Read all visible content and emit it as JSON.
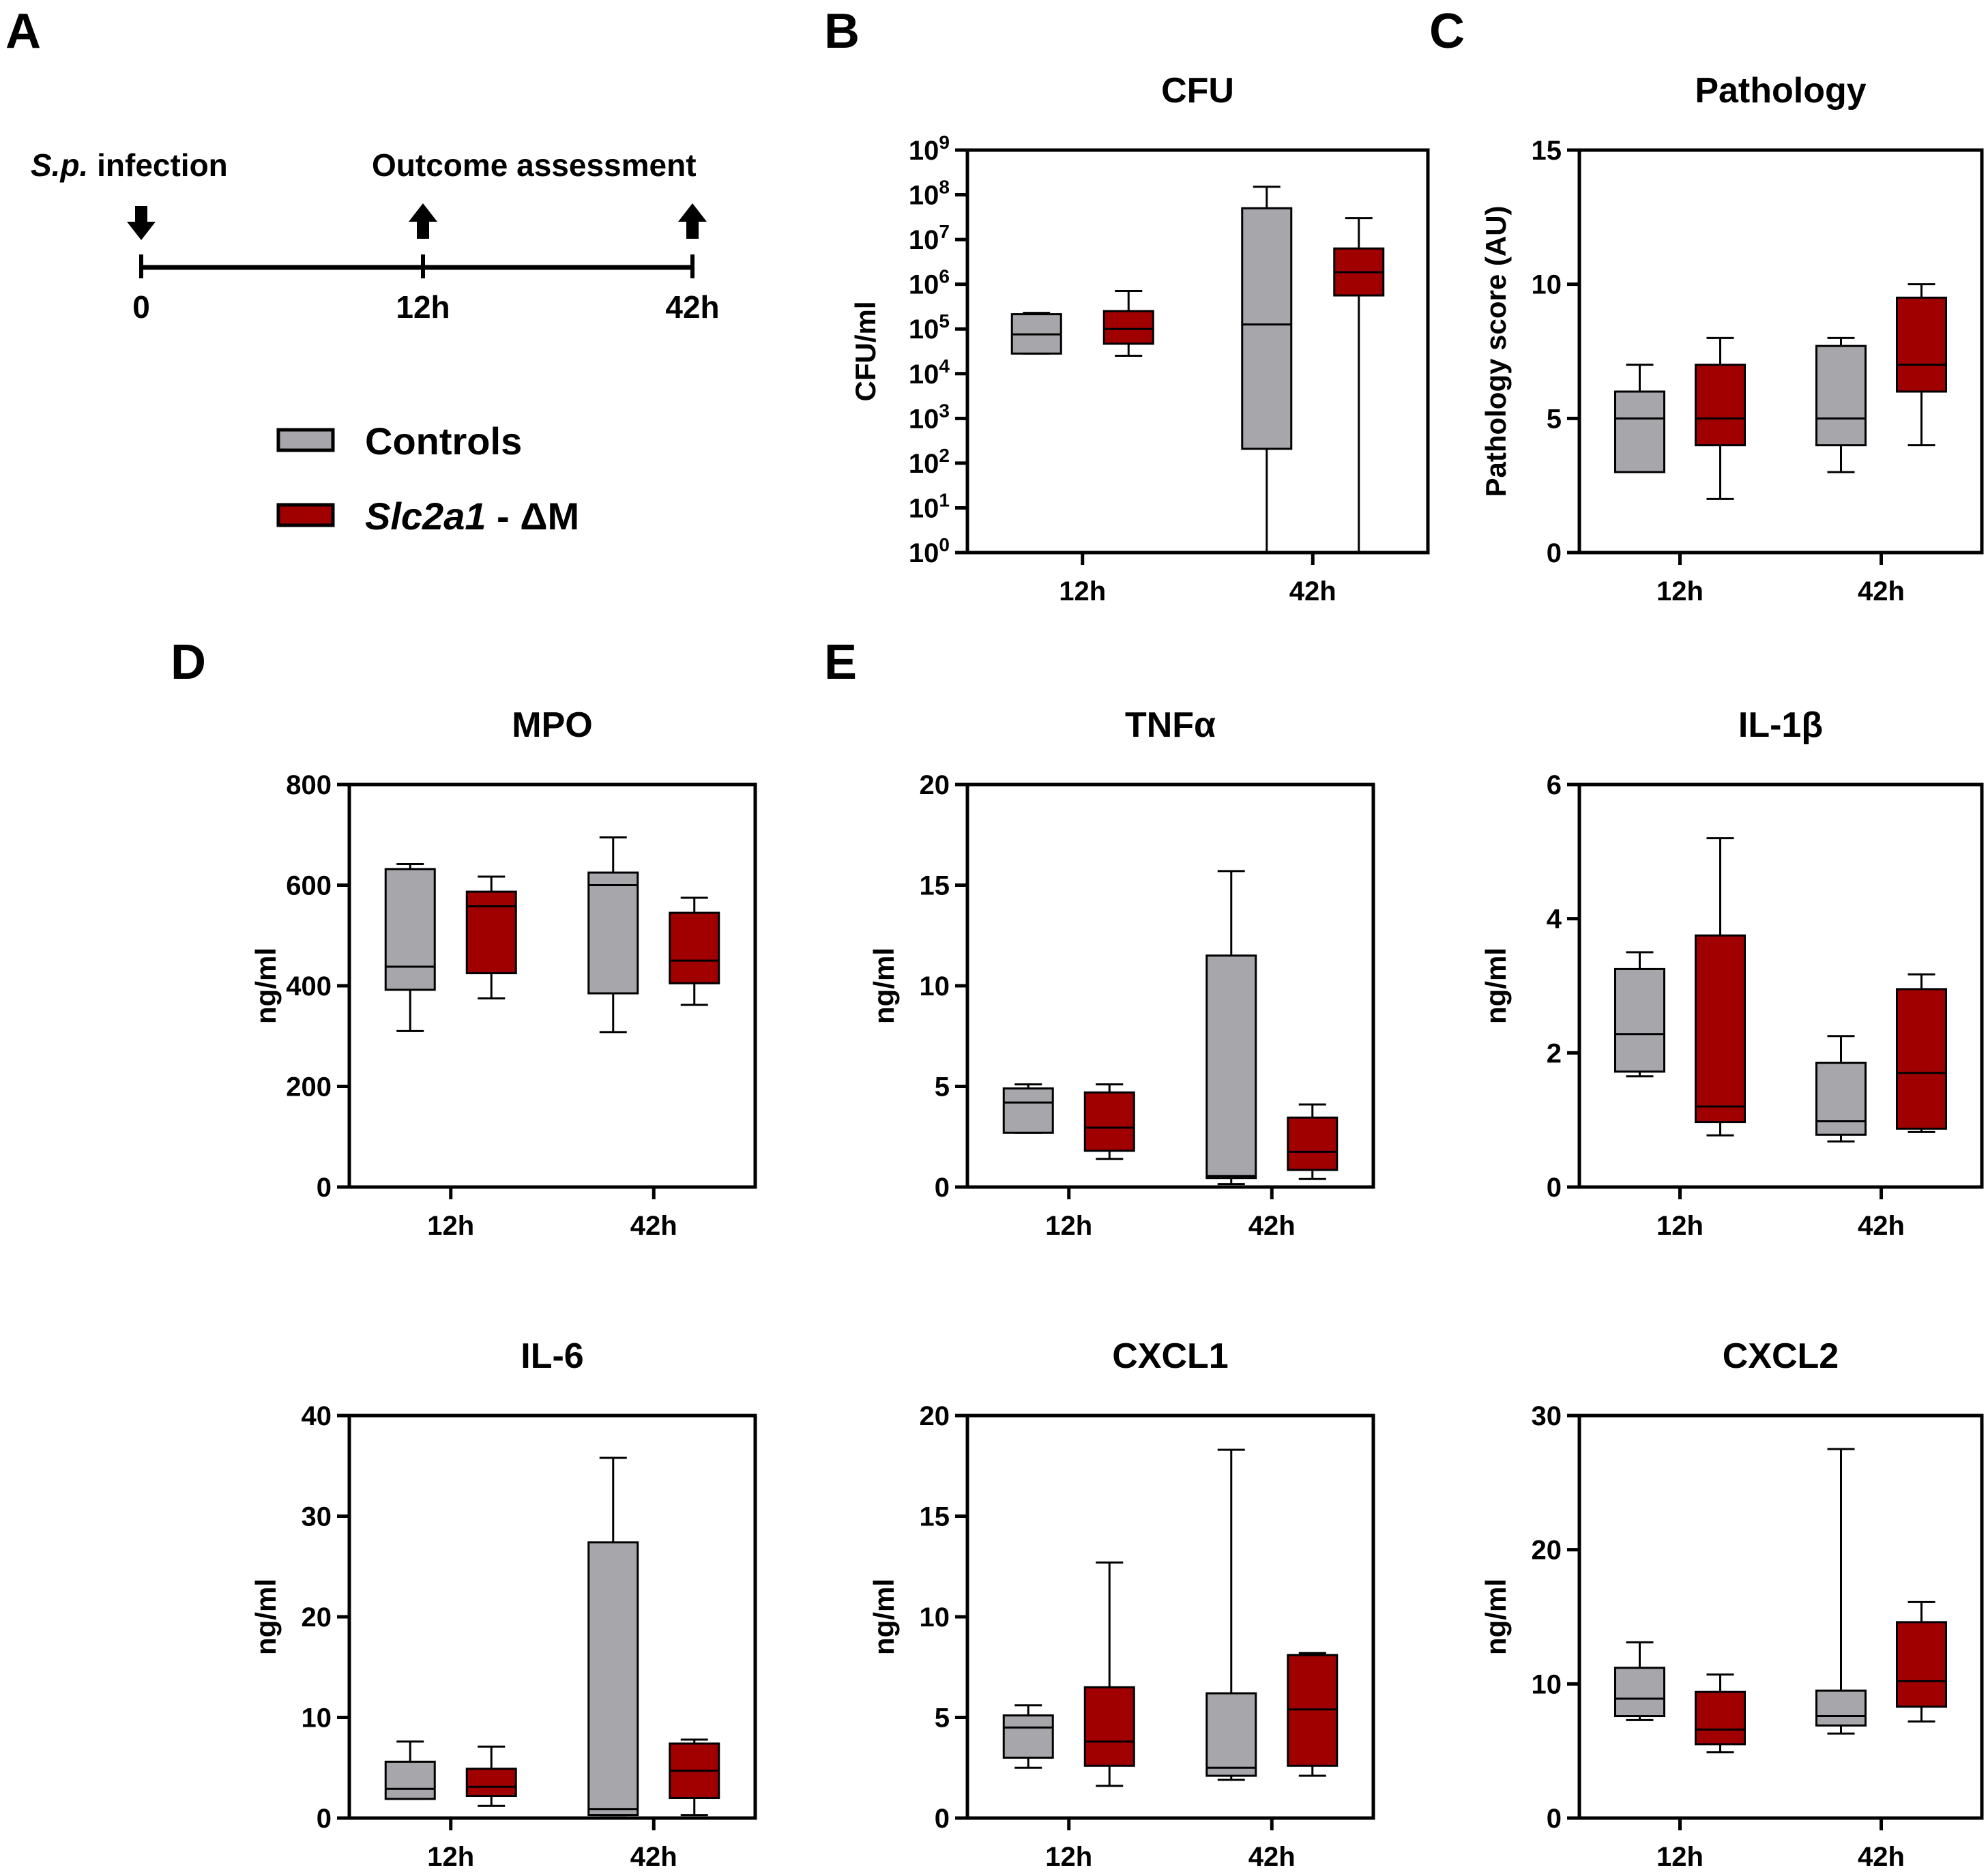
{
  "colors": {
    "control": "#a6a6ab",
    "knockout": "#a10000",
    "stroke": "#000000"
  },
  "panels": {
    "a": "A",
    "b": "B",
    "c": "C",
    "d": "D",
    "e": "E"
  },
  "timeline": {
    "infection_label_italic": "S.p.",
    "infection_label_rest": " infection",
    "outcome_label": "Outcome assessment",
    "ticks": [
      "0",
      "12h",
      "42h"
    ]
  },
  "legend": {
    "controls": "Controls",
    "ko_italic": "Slc2a1",
    "ko_rest": " - ΔM"
  },
  "chart_data": [
    {
      "id": "cfu",
      "type": "box",
      "title": "CFU",
      "ylabel": "CFU/ml",
      "yscale": "log10",
      "ylim": [
        0,
        9
      ],
      "yticks": [
        {
          "v": 0,
          "base": "10",
          "exp": "0"
        },
        {
          "v": 1,
          "base": "10",
          "exp": "1"
        },
        {
          "v": 2,
          "base": "10",
          "exp": "2"
        },
        {
          "v": 3,
          "base": "10",
          "exp": "3"
        },
        {
          "v": 4,
          "base": "10",
          "exp": "4"
        },
        {
          "v": 5,
          "base": "10",
          "exp": "5"
        },
        {
          "v": 6,
          "base": "10",
          "exp": "6"
        },
        {
          "v": 7,
          "base": "10",
          "exp": "7"
        },
        {
          "v": 8,
          "base": "10",
          "exp": "8"
        },
        {
          "v": 9,
          "base": "10",
          "exp": "9"
        }
      ],
      "categories": [
        "12h",
        "42h"
      ],
      "series": [
        {
          "name": "Controls",
          "boxes": [
            {
              "min": 4.45,
              "q1": 4.45,
              "median": 4.88,
              "q3": 5.33,
              "max": 5.36
            },
            {
              "min": 0,
              "q1": 2.32,
              "median": 5.1,
              "q3": 7.7,
              "max": 8.18
            }
          ]
        },
        {
          "name": "Slc2a1 - ΔM",
          "boxes": [
            {
              "min": 4.4,
              "q1": 4.67,
              "median": 5.0,
              "q3": 5.4,
              "max": 5.85
            },
            {
              "min": 0,
              "q1": 5.75,
              "median": 6.27,
              "q3": 6.8,
              "max": 7.48
            }
          ]
        }
      ]
    },
    {
      "id": "pathology",
      "type": "box",
      "title": "Pathology",
      "ylabel": "Pathology score (AU)",
      "ylim": [
        0,
        15
      ],
      "yticks": [
        0,
        5,
        10,
        15
      ],
      "categories": [
        "12h",
        "42h"
      ],
      "series": [
        {
          "name": "Controls",
          "boxes": [
            {
              "min": 3,
              "q1": 3,
              "median": 5,
              "q3": 6,
              "max": 7
            },
            {
              "min": 3,
              "q1": 4,
              "median": 5,
              "q3": 7.7,
              "max": 8
            }
          ]
        },
        {
          "name": "Slc2a1 - ΔM",
          "boxes": [
            {
              "min": 2,
              "q1": 4,
              "median": 5,
              "q3": 7,
              "max": 8
            },
            {
              "min": 4,
              "q1": 6,
              "median": 7,
              "q3": 9.5,
              "max": 10
            }
          ]
        }
      ]
    },
    {
      "id": "mpo",
      "type": "box",
      "title": "MPO",
      "ylabel": "ng/ml",
      "ylim": [
        0,
        800
      ],
      "yticks": [
        0,
        200,
        400,
        600,
        800
      ],
      "categories": [
        "12h",
        "42h"
      ],
      "series": [
        {
          "name": "Controls",
          "boxes": [
            {
              "min": 310,
              "q1": 392,
              "median": 438,
              "q3": 632,
              "max": 642
            },
            {
              "min": 308,
              "q1": 385,
              "median": 600,
              "q3": 625,
              "max": 695
            }
          ]
        },
        {
          "name": "Slc2a1 - ΔM",
          "boxes": [
            {
              "min": 375,
              "q1": 425,
              "median": 558,
              "q3": 587,
              "max": 617
            },
            {
              "min": 362,
              "q1": 405,
              "median": 450,
              "q3": 545,
              "max": 575
            }
          ]
        }
      ]
    },
    {
      "id": "tnfa",
      "type": "box",
      "title": "TNFα",
      "ylabel": "ng/ml",
      "ylim": [
        0,
        20
      ],
      "yticks": [
        0,
        5,
        10,
        15,
        20
      ],
      "categories": [
        "12h",
        "42h"
      ],
      "series": [
        {
          "name": "Controls",
          "boxes": [
            {
              "min": 2.7,
              "q1": 2.7,
              "median": 4.2,
              "q3": 4.9,
              "max": 5.1
            },
            {
              "min": 0.15,
              "q1": 0.45,
              "median": 0.55,
              "q3": 11.5,
              "max": 15.7
            }
          ]
        },
        {
          "name": "Slc2a1 - ΔM",
          "boxes": [
            {
              "min": 1.4,
              "q1": 1.8,
              "median": 2.95,
              "q3": 4.7,
              "max": 5.1
            },
            {
              "min": 0.4,
              "q1": 0.85,
              "median": 1.75,
              "q3": 3.45,
              "max": 4.1
            }
          ]
        }
      ]
    },
    {
      "id": "il1b",
      "type": "box",
      "title": "IL-1β",
      "ylabel": "ng/ml",
      "ylim": [
        0,
        6
      ],
      "yticks": [
        0,
        2,
        4,
        6
      ],
      "categories": [
        "12h",
        "42h"
      ],
      "series": [
        {
          "name": "Controls",
          "boxes": [
            {
              "min": 1.65,
              "q1": 1.72,
              "median": 2.28,
              "q3": 3.25,
              "max": 3.5
            },
            {
              "min": 0.68,
              "q1": 0.78,
              "median": 0.98,
              "q3": 1.85,
              "max": 2.25
            }
          ]
        },
        {
          "name": "Slc2a1 - ΔM",
          "boxes": [
            {
              "min": 0.77,
              "q1": 0.97,
              "median": 1.2,
              "q3": 3.75,
              "max": 5.2
            },
            {
              "min": 0.82,
              "q1": 0.87,
              "median": 1.7,
              "q3": 2.95,
              "max": 3.17
            }
          ]
        }
      ]
    },
    {
      "id": "il6",
      "type": "box",
      "title": "IL-6",
      "ylabel": "ng/ml",
      "ylim": [
        0,
        40
      ],
      "yticks": [
        0,
        10,
        20,
        30,
        40
      ],
      "categories": [
        "12h",
        "42h"
      ],
      "series": [
        {
          "name": "Controls",
          "boxes": [
            {
              "min": 1.9,
              "q1": 1.9,
              "median": 2.9,
              "q3": 5.6,
              "max": 7.6
            },
            {
              "min": 0.3,
              "q1": 0.3,
              "median": 0.9,
              "q3": 27.4,
              "max": 35.8
            }
          ]
        },
        {
          "name": "Slc2a1 - ΔM",
          "boxes": [
            {
              "min": 1.2,
              "q1": 2.2,
              "median": 3.1,
              "q3": 4.9,
              "max": 7.1
            },
            {
              "min": 0.3,
              "q1": 2.0,
              "median": 4.7,
              "q3": 7.4,
              "max": 7.8
            }
          ]
        }
      ]
    },
    {
      "id": "cxcl1",
      "type": "box",
      "title": "CXCL1",
      "ylabel": "ng/ml",
      "ylim": [
        0,
        20
      ],
      "yticks": [
        0,
        5,
        10,
        15,
        20
      ],
      "categories": [
        "12h",
        "42h"
      ],
      "series": [
        {
          "name": "Controls",
          "boxes": [
            {
              "min": 2.5,
              "q1": 3.0,
              "median": 4.5,
              "q3": 5.1,
              "max": 5.6
            },
            {
              "min": 1.9,
              "q1": 2.1,
              "median": 2.5,
              "q3": 6.2,
              "max": 18.3
            }
          ]
        },
        {
          "name": "Slc2a1 - ΔM",
          "boxes": [
            {
              "min": 1.6,
              "q1": 2.6,
              "median": 3.8,
              "q3": 6.5,
              "max": 12.7
            },
            {
              "min": 2.1,
              "q1": 2.6,
              "median": 5.4,
              "q3": 8.1,
              "max": 8.2
            }
          ]
        }
      ]
    },
    {
      "id": "cxcl2",
      "type": "box",
      "title": "CXCL2",
      "ylabel": "ng/ml",
      "ylim": [
        0,
        30
      ],
      "yticks": [
        0,
        10,
        20,
        30
      ],
      "categories": [
        "12h",
        "42h"
      ],
      "series": [
        {
          "name": "Controls",
          "boxes": [
            {
              "min": 7.3,
              "q1": 7.6,
              "median": 8.9,
              "q3": 11.2,
              "max": 13.1
            },
            {
              "min": 6.3,
              "q1": 6.9,
              "median": 7.6,
              "q3": 9.5,
              "max": 27.5
            }
          ]
        },
        {
          "name": "Slc2a1 - ΔM",
          "boxes": [
            {
              "min": 4.9,
              "q1": 5.5,
              "median": 6.6,
              "q3": 9.4,
              "max": 10.7
            },
            {
              "min": 7.2,
              "q1": 8.3,
              "median": 10.2,
              "q3": 14.6,
              "max": 16.1
            }
          ]
        }
      ]
    }
  ]
}
